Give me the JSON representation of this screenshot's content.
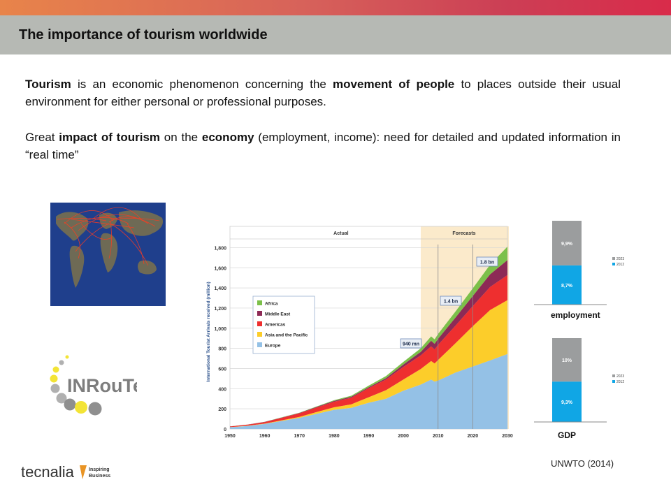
{
  "slide": {
    "title": "The importance of tourism worldwide",
    "paragraph1": [
      {
        "text": "Tourism",
        "bold": true
      },
      {
        "text": " is an economic phenomenon concerning the ",
        "bold": false
      },
      {
        "text": "movement of people",
        "bold": true
      },
      {
        "text": " to places outside their usual environment for either personal or professional purposes.",
        "bold": false
      }
    ],
    "paragraph2": [
      {
        "text": "Great ",
        "bold": false
      },
      {
        "text": "impact of tourism",
        "bold": true
      },
      {
        "text": " on the ",
        "bold": false
      },
      {
        "text": "economy",
        "bold": true
      },
      {
        "text": " (employment, income): need for detailed and updated information in “real time”",
        "bold": false
      }
    ],
    "source": "UNWTO (2014)",
    "logos": {
      "inroute": "INRouTe",
      "tecnalia": "tecnalia",
      "tecnalia_tagline_1": "Inspiring",
      "tecnalia_tagline_2": "Business"
    },
    "colors": {
      "europe": "#94c1e6",
      "asia": "#fccd2a",
      "americas": "#ee2f2f",
      "middle_east": "#8d2a56",
      "africa": "#7cc04a",
      "bar_2023": "#9b9d9e",
      "bar_2012": "#10a6e5"
    }
  },
  "chart_data": [
    {
      "type": "area",
      "title": "",
      "xlabel": "",
      "ylabel": "International Tourist Arrivals received (million)",
      "xlim": [
        1950,
        2030
      ],
      "ylim": [
        0,
        1900
      ],
      "xticks": [
        "1950",
        "1960",
        "1970",
        "1980",
        "1990",
        "2000",
        "2010",
        "2020",
        "2030"
      ],
      "yticks": [
        "0",
        "200",
        "400",
        "600",
        "800",
        "1,000",
        "1,200",
        "1,400",
        "1,600",
        "1,800"
      ],
      "sections": [
        "Actual",
        "Forecasts"
      ],
      "annotations": [
        "940 mn",
        "1.4 bn",
        "1.8 bn"
      ],
      "legend": [
        "Africa",
        "Middle East",
        "Americas",
        "Asia and the Pacific",
        "Europe"
      ],
      "x": [
        1950,
        1955,
        1960,
        1965,
        1970,
        1975,
        1980,
        1985,
        1990,
        1995,
        2000,
        2005,
        2008,
        2009,
        2010,
        2015,
        2020,
        2025,
        2030
      ],
      "series": [
        {
          "name": "Europe",
          "values": [
            17,
            30,
            50,
            80,
            110,
            150,
            190,
            210,
            260,
            300,
            380,
            440,
            490,
            470,
            480,
            560,
            620,
            680,
            744
          ]
        },
        {
          "name": "Asia and the Pacific",
          "values": [
            1,
            2,
            3,
            6,
            10,
            18,
            25,
            35,
            55,
            85,
            110,
            155,
            185,
            180,
            205,
            290,
            400,
            500,
            535
          ]
        },
        {
          "name": "Americas",
          "values": [
            6,
            10,
            15,
            25,
            35,
            45,
            55,
            65,
            90,
            105,
            125,
            135,
            145,
            140,
            150,
            175,
            200,
            230,
            248
          ]
        },
        {
          "name": "Middle East",
          "values": [
            1,
            1,
            2,
            3,
            4,
            6,
            8,
            10,
            10,
            15,
            25,
            35,
            55,
            55,
            60,
            80,
            100,
            125,
            149
          ]
        },
        {
          "name": "Africa",
          "values": [
            0.5,
            1,
            1,
            2,
            2.5,
            4,
            7,
            10,
            15,
            20,
            26,
            35,
            44,
            45,
            48,
            60,
            75,
            95,
            134
          ]
        }
      ]
    },
    {
      "type": "bar",
      "title": "",
      "xlabel": "employment",
      "ylabel": "",
      "categories": [
        "employment"
      ],
      "legend": [
        "2023",
        "2012"
      ],
      "series": [
        {
          "name": "2012",
          "values": [
            8.7
          ],
          "label": "8,7%"
        },
        {
          "name": "2023",
          "values": [
            9.9
          ],
          "label": "9,9%"
        }
      ]
    },
    {
      "type": "bar",
      "title": "",
      "xlabel": "GDP",
      "ylabel": "",
      "categories": [
        "GDP"
      ],
      "legend": [
        "2023",
        "2012"
      ],
      "series": [
        {
          "name": "2012",
          "values": [
            9.3
          ],
          "label": "9,3%"
        },
        {
          "name": "2023",
          "values": [
            10
          ],
          "label": "10%"
        }
      ]
    }
  ]
}
